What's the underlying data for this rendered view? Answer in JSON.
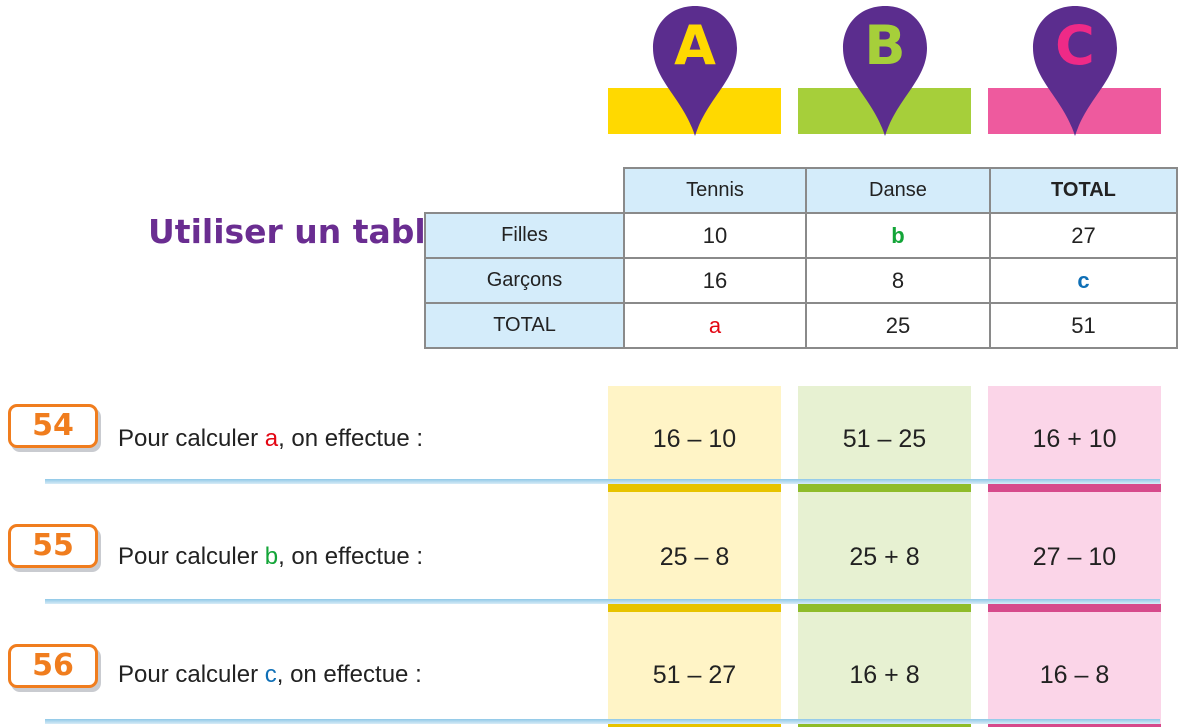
{
  "columns": [
    {
      "letter": "A",
      "bar_color": "#ffd900",
      "letter_color": "#ffd900"
    },
    {
      "letter": "B",
      "bar_color": "#a6cf3a",
      "letter_color": "#a6cf3a"
    },
    {
      "letter": "C",
      "bar_color": "#ee5a9e",
      "letter_color": "#ee2a87"
    }
  ],
  "pin_color": "#5b2d8e",
  "title": "Utiliser un tableau",
  "table": {
    "headers": [
      "",
      "Tennis",
      "Danse",
      "TOTAL"
    ],
    "rows": [
      {
        "label": "Filles",
        "cells": [
          "10",
          "b",
          "27"
        ]
      },
      {
        "label": "Garçons",
        "cells": [
          "16",
          "8",
          "c"
        ]
      },
      {
        "label": "TOTAL",
        "cells": [
          "a",
          "25",
          "51"
        ]
      }
    ]
  },
  "questions": [
    {
      "number": "54",
      "prefix": "Pour calculer ",
      "variable": "a",
      "suffix": ", on effectue :",
      "answers": [
        "16 – 10",
        "51 – 25",
        "16 + 10"
      ]
    },
    {
      "number": "55",
      "prefix": "Pour calculer ",
      "variable": "b",
      "suffix": ", on effectue :",
      "answers": [
        "25 – 8",
        "25 + 8",
        "27 – 10"
      ]
    },
    {
      "number": "56",
      "prefix": "Pour calculer ",
      "variable": "c",
      "suffix": ", on effectue :",
      "answers": [
        "51 – 27",
        "16 + 8",
        "16 – 8"
      ]
    }
  ]
}
